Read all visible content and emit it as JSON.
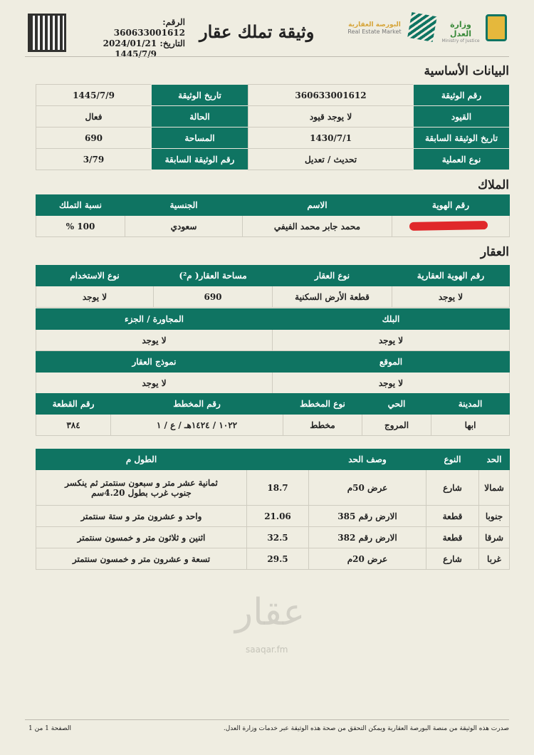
{
  "header": {
    "title": "وثيقة تملك عقار",
    "number_label": "الرقم:",
    "number": "360633001612",
    "date_label": "التاريخ:",
    "date": "2024/01/21",
    "hijri_date": "1445/7/9",
    "logo_market_ar": "البورصة العقارية",
    "logo_market_en": "Real Estate Market",
    "logo_ministry_ar": "وزارة العدل",
    "logo_ministry_en": "Ministry of Justice"
  },
  "watermark": {
    "text": "عقار",
    "domain": "saaqar.fm"
  },
  "basic": {
    "heading": "البيانات الأساسية",
    "rows": [
      [
        "رقم الوثيقة",
        "360633001612",
        "تاريخ الوثيقة",
        "1445/7/9"
      ],
      [
        "القيود",
        "لا يوجد قيود",
        "الحالة",
        "فعال"
      ],
      [
        "تاريخ الوثيقة السابقة",
        "1430/7/1",
        "المساحة",
        "690"
      ],
      [
        "نوع العملية",
        "تحديث / تعديل",
        "رقم الوثيقة السابقة",
        "3/79"
      ]
    ]
  },
  "owners": {
    "heading": "الملاك",
    "columns": [
      "رقم الهوية",
      "الاسم",
      "الجنسية",
      "نسبة التملك"
    ],
    "rows": [
      [
        "",
        "محمد جابر محمد الفيفي",
        "سعودي",
        "100 %"
      ]
    ]
  },
  "property": {
    "heading": "العقار",
    "t1": {
      "columns": [
        "رقم الهوية العقارية",
        "نوع العقار",
        "مساحة العقار( م²)",
        "نوع الاستخدام"
      ],
      "row": [
        "لا يوجد",
        "قطعة الأرض السكنية",
        "690",
        "لا يوجد"
      ]
    },
    "t2": {
      "columns": [
        "البلك",
        "المجاورة / الجزء"
      ],
      "row": [
        "لا يوجد",
        "لا يوجد"
      ]
    },
    "t3": {
      "columns": [
        "الموقع",
        "نموذج العقار"
      ],
      "row": [
        "لا يوجد",
        "لا يوجد"
      ]
    },
    "t4": {
      "columns": [
        "المدينة",
        "الحي",
        "نوع المخطط",
        "رقم المخطط",
        "رقم القطعة"
      ],
      "row": [
        "ابها",
        "المروج",
        "مخطط",
        "١٠٢٢ / ١٤٢٤هـ / ع / ١",
        "٣٨٤"
      ]
    }
  },
  "boundaries": {
    "columns": [
      "الحد",
      "النوع",
      "وصف الحد",
      "الطول م"
    ],
    "rows": [
      [
        "شمالا",
        "شارع",
        "عرض 50م",
        "18.7",
        "ثمانية عشر متر و سبعون سنتمتر ثم ينكسر جنوب غرب بطول 4.20سم"
      ],
      [
        "جنوبا",
        "قطعة",
        "الارض رقم 385",
        "21.06",
        "واحد و عشرون متر و ستة سنتمتر"
      ],
      [
        "شرقا",
        "قطعة",
        "الارض رقم 382",
        "32.5",
        "اثنين و ثلاثون متر و خمسون سنتمتر"
      ],
      [
        "غربا",
        "شارع",
        "عرض 20م",
        "29.5",
        "تسعة و عشرون متر و خمسون سنتمتر"
      ]
    ]
  },
  "footer": {
    "note": "صدرت هذه الوثيقة من منصة البورصة العقارية ويمكن التحقق من صحة هذه الوثيقة عبر خدمات وزارة العدل.",
    "page": "الصفحة 1 من 1"
  },
  "colors": {
    "green": "#0f7462",
    "redaction": "#e0282a",
    "background": "#efede1"
  }
}
